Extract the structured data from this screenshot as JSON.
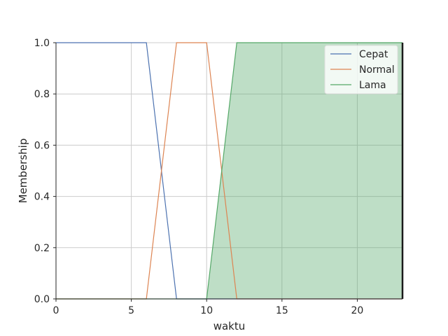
{
  "chart_data": {
    "type": "line",
    "title": "",
    "xlabel": "waktu",
    "ylabel": "Membership",
    "xlim": [
      0,
      23
    ],
    "ylim": [
      0,
      1.0
    ],
    "xticks": [
      0,
      5,
      10,
      15,
      20
    ],
    "xtick_labels": [
      "0",
      "5",
      "10",
      "15",
      "20"
    ],
    "yticks": [
      0.0,
      0.2,
      0.4,
      0.6,
      0.8,
      1.0
    ],
    "ytick_labels": [
      "0.0",
      "0.2",
      "0.4",
      "0.6",
      "0.8",
      "1.0"
    ],
    "grid": true,
    "legend_position": "top-right",
    "series": [
      {
        "name": "Cepat",
        "color": "#4c72b0",
        "x": [
          0,
          6,
          8,
          23
        ],
        "y": [
          1,
          1,
          0,
          0
        ]
      },
      {
        "name": "Normal",
        "color": "#dd8452",
        "x": [
          0,
          6,
          8,
          10,
          12,
          23
        ],
        "y": [
          0,
          0,
          1,
          1,
          0,
          0
        ]
      },
      {
        "name": "Lama",
        "color": "#55a868",
        "x": [
          0,
          10,
          12,
          23
        ],
        "y": [
          0,
          0,
          1,
          1
        ],
        "filled": true,
        "fill_color": "#55a868",
        "fill_opacity": 0.38
      }
    ]
  }
}
